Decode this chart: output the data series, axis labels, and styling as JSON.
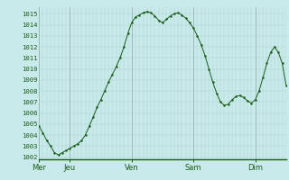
{
  "background_color": "#c8eaea",
  "line_color": "#1a5c1a",
  "marker_color": "#1a5c1a",
  "grid_color_major": "#9ab8b8",
  "grid_color_minor": "#b4d0d0",
  "ylabel_color": "#1a5c1a",
  "xlabel_color": "#1a5c1a",
  "tick_color": "#1a5c1a",
  "ylim": [
    1001.8,
    1015.6
  ],
  "yticks": [
    1002,
    1003,
    1004,
    1005,
    1006,
    1007,
    1008,
    1009,
    1010,
    1011,
    1012,
    1013,
    1014,
    1015
  ],
  "day_labels": [
    "Mer",
    "Jeu",
    "Ven",
    "Sam",
    "Dim"
  ],
  "day_x_positions": [
    0,
    24,
    72,
    120,
    168
  ],
  "xlim": [
    0,
    192
  ],
  "x_values": [
    0,
    3,
    6,
    9,
    12,
    15,
    18,
    21,
    24,
    27,
    30,
    33,
    36,
    39,
    42,
    45,
    48,
    51,
    54,
    57,
    60,
    63,
    66,
    69,
    72,
    75,
    78,
    81,
    84,
    87,
    90,
    93,
    96,
    99,
    102,
    105,
    108,
    111,
    114,
    117,
    120,
    123,
    126,
    129,
    132,
    135,
    138,
    141,
    144,
    147,
    150,
    153,
    156,
    159,
    162,
    165,
    168,
    171,
    174,
    177,
    180,
    183,
    186,
    189,
    192
  ],
  "y_values": [
    1004.8,
    1004.2,
    1003.5,
    1003.0,
    1002.4,
    1002.2,
    1002.4,
    1002.6,
    1002.8,
    1003.0,
    1003.2,
    1003.5,
    1004.0,
    1004.8,
    1005.6,
    1006.5,
    1007.2,
    1008.0,
    1008.8,
    1009.5,
    1010.2,
    1011.0,
    1012.0,
    1013.2,
    1014.2,
    1014.7,
    1014.9,
    1015.1,
    1015.2,
    1015.1,
    1014.8,
    1014.4,
    1014.2,
    1014.5,
    1014.8,
    1015.0,
    1015.1,
    1014.9,
    1014.6,
    1014.2,
    1013.7,
    1013.0,
    1012.2,
    1011.2,
    1010.0,
    1008.8,
    1007.8,
    1007.0,
    1006.7,
    1006.8,
    1007.2,
    1007.5,
    1007.6,
    1007.4,
    1007.1,
    1006.9,
    1007.2,
    1008.0,
    1009.2,
    1010.5,
    1011.5,
    1012.0,
    1011.5,
    1010.5,
    1008.5
  ]
}
